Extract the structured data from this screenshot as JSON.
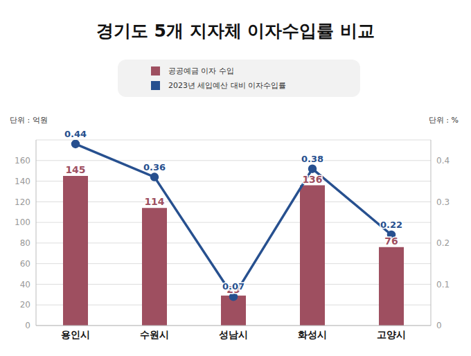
{
  "chart_data": {
    "type": "bar",
    "title": "경기도 5개 지자체 이자수입률 비교",
    "categories": [
      "용인시",
      "수원시",
      "성남시",
      "화성시",
      "고양시"
    ],
    "series": [
      {
        "name": "공공예금 이자 수입",
        "type": "bar",
        "color": "#9e4f60",
        "values": [
          145,
          114,
          29,
          136,
          76
        ]
      },
      {
        "name": "2023년 세입예산 대비 이자수입률",
        "type": "line",
        "axis": "y2",
        "color": "#27508f",
        "marker": "circle",
        "values": [
          0.44,
          0.36,
          0.07,
          0.38,
          0.22
        ]
      }
    ],
    "ylabel": "단위 : 억원",
    "y2label": "단위 : %",
    "ylim": [
      0,
      180
    ],
    "yticks": [
      0,
      20,
      40,
      60,
      80,
      100,
      120,
      140,
      160
    ],
    "y2lim": [
      0,
      0.45
    ],
    "y2ticks": [
      0,
      0.1,
      0.2,
      0.3,
      0.4
    ],
    "grid": true,
    "legend": "top",
    "data_labels": true
  }
}
